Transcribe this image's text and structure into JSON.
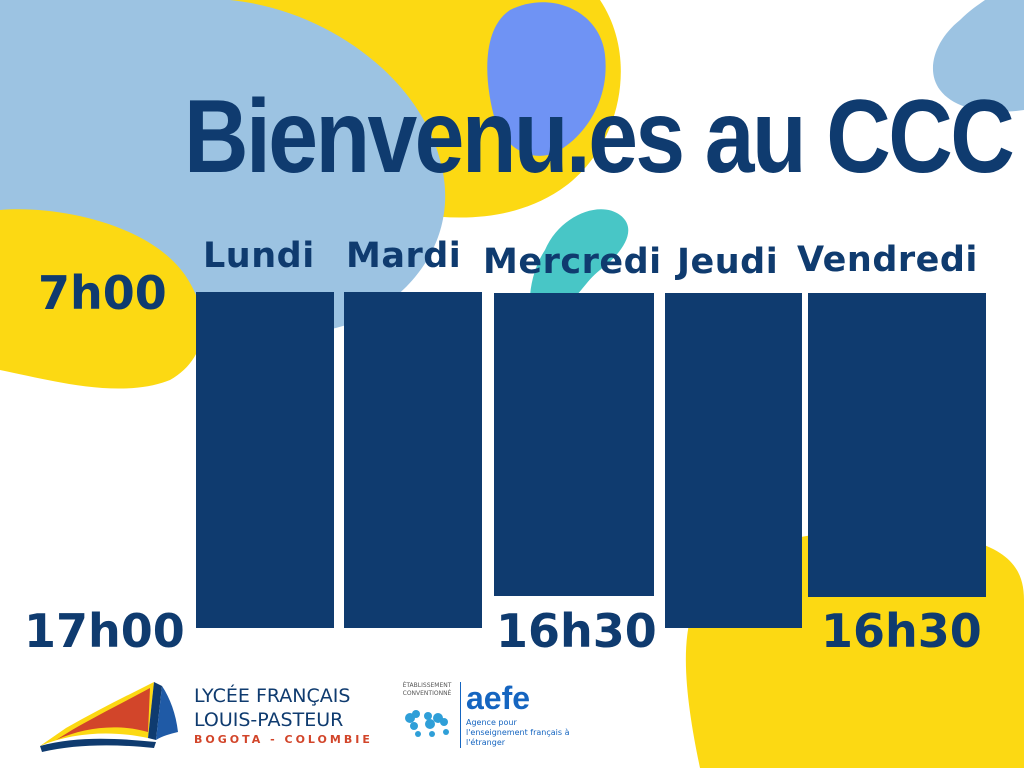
{
  "title": "Bienvenu.es au CCC",
  "colors": {
    "navy": "#0f3b6f",
    "light_blue": "#9cc3e2",
    "yellow": "#fcd913",
    "periwinkle": "#6f93f4",
    "teal": "#48c6c6"
  },
  "schedule": {
    "days": [
      {
        "label": "Lundi",
        "open": "7h00",
        "close": "17h00"
      },
      {
        "label": "Mardi",
        "open": "7h00",
        "close": "17h00"
      },
      {
        "label": "Mercredi",
        "open": "7h00",
        "close": "16h30"
      },
      {
        "label": "Jeudi",
        "open": "7h00",
        "close": "17h00"
      },
      {
        "label": "Vendredi",
        "open": "7h00",
        "close": "16h30"
      }
    ],
    "time_open": "7h00",
    "time_close_main": "17h00",
    "time_close_wed": "16h30",
    "time_close_fri": "16h30"
  },
  "logos": {
    "lycee": {
      "line1": "LYCÉE FRANÇAIS",
      "line2": "LOUIS-PASTEUR",
      "line3": "BOGOTA - COLOMBIE",
      "icon": "open-book-icon"
    },
    "aefe": {
      "small": "ÉTABLISSEMENT CONVENTIONNÉ",
      "name": "aefe",
      "sub": "Agence pour l'enseignement français à l'étranger",
      "icon": "world-map-icon"
    }
  }
}
